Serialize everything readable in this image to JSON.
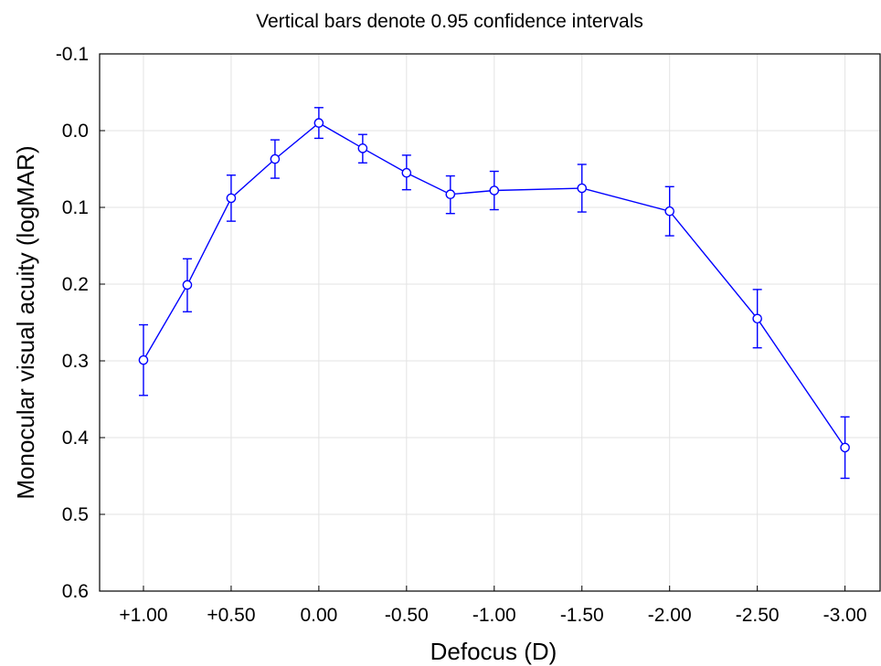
{
  "chart_data": {
    "type": "line",
    "title": "Vertical bars denote 0.95 confidence intervals",
    "xlabel": "Defocus (D)",
    "ylabel": "Monocular visual acuity (logMAR)",
    "x_tick_labels": [
      "+1.00",
      "+0.50",
      "0.00",
      "-0.50",
      "-1.00",
      "-1.50",
      "-2.00",
      "-2.50",
      "-3.00"
    ],
    "x_ticks": [
      1.0,
      0.5,
      0.0,
      -0.5,
      -1.0,
      -1.5,
      -2.0,
      -2.5,
      -3.0
    ],
    "xlim": [
      1.25,
      -3.2
    ],
    "y_tick_labels": [
      "-0.1",
      "0.0",
      "0.1",
      "0.2",
      "0.3",
      "0.4",
      "0.5",
      "0.6"
    ],
    "y_ticks": [
      -0.1,
      0.0,
      0.1,
      0.2,
      0.3,
      0.4,
      0.5,
      0.6
    ],
    "ylim": [
      -0.1,
      0.6
    ],
    "y_inverted": true,
    "grid": true,
    "series": [
      {
        "color": "#0000ff",
        "marker": "circle",
        "x": [
          1.0,
          0.75,
          0.5,
          0.25,
          0.0,
          -0.25,
          -0.5,
          -0.75,
          -1.0,
          -1.5,
          -2.0,
          -2.5,
          -3.0
        ],
        "y": [
          0.299,
          0.201,
          0.088,
          0.037,
          -0.01,
          0.023,
          0.055,
          0.083,
          0.078,
          0.075,
          0.105,
          0.245,
          0.413
        ],
        "lower": [
          0.253,
          0.167,
          0.058,
          0.012,
          -0.03,
          0.005,
          0.032,
          0.059,
          0.053,
          0.044,
          0.073,
          0.207,
          0.373
        ],
        "upper": [
          0.345,
          0.236,
          0.118,
          0.062,
          0.01,
          0.042,
          0.077,
          0.108,
          0.103,
          0.106,
          0.137,
          0.283,
          0.453
        ]
      }
    ]
  }
}
